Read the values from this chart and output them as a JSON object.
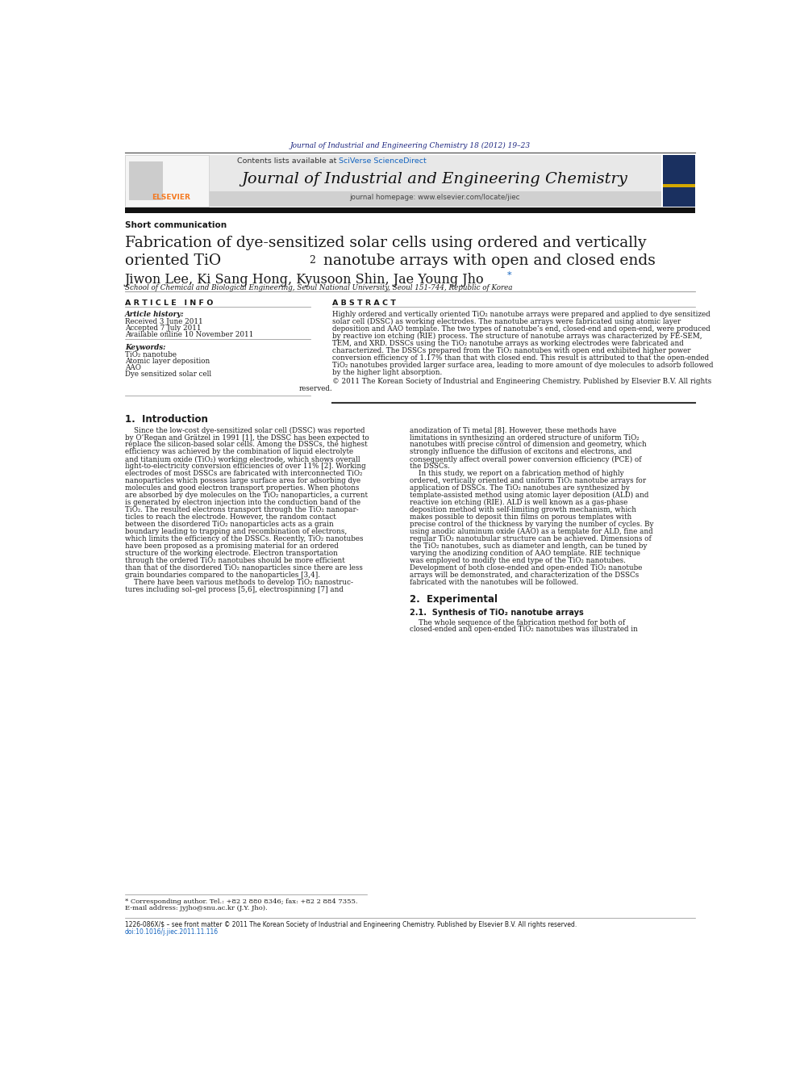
{
  "page_width": 9.92,
  "page_height": 13.23,
  "bg_color": "#ffffff",
  "header_journal_text": "Journal of Industrial and Engineering Chemistry 18 (2012) 19–23",
  "header_journal_color": "#1a237e",
  "sciverse_color": "#1565c0",
  "journal_title": "Journal of Industrial and Engineering Chemistry",
  "journal_homepage_text": "journal homepage: www.elsevier.com/locate/jiec",
  "header_bg_color": "#e8e8e8",
  "elsevier_orange": "#f47920",
  "section_label": "Short communication",
  "article_title_line1": "Fabrication of dye-sensitized solar cells using ordered and vertically",
  "article_title_line2a": "oriented TiO",
  "article_title_line2b": "2",
  "article_title_line2c": " nanotube arrays with open and closed ends",
  "authors": "Jiwon Lee, Ki Sang Hong, Kyusoon Shin, Jae Young Jho",
  "affiliation": "School of Chemical and Biological Engineering, Seoul National University, Seoul 151-744, Republic of Korea",
  "article_info_header": "A R T I C L E   I N F O",
  "abstract_header": "A B S T R A C T",
  "article_history_label": "Article history:",
  "received": "Received 3 June 2011",
  "accepted": "Accepted 7 July 2011",
  "available": "Available online 10 November 2011",
  "keywords_label": "Keywords:",
  "keyword1": "TiO₂ nanotube",
  "keyword2": "Atomic layer deposition",
  "keyword3": "AAO",
  "keyword4": "Dye sensitized solar cell",
  "abstract_lines": [
    "Highly ordered and vertically oriented TiO₂ nanotube arrays were prepared and applied to dye sensitized",
    "solar cell (DSSC) as working electrodes. The nanotube arrays were fabricated using atomic layer",
    "deposition and AAO template. The two types of nanotube’s end, closed-end and open-end, were produced",
    "by reactive ion etching (RIE) process. The structure of nanotube arrays was characterized by FE-SEM,",
    "TEM, and XRD. DSSCs using the TiO₂ nanotube arrays as working electrodes were fabricated and",
    "characterized. The DSSCs prepared from the TiO₂ nanotubes with open end exhibited higher power",
    "conversion efficiency of 1.17% than that with closed end. This result is attributed to that the open-ended",
    "TiO₂ nanotubes provided larger surface area, leading to more amount of dye molecules to adsorb followed",
    "by the higher light absorption."
  ],
  "copyright_line1": "© 2011 The Korean Society of Industrial and Engineering Chemistry. Published by Elsevier B.V. All rights",
  "copyright_line2": "reserved.",
  "intro_section": "1.  Introduction",
  "intro_left_lines": [
    "    Since the low-cost dye-sensitized solar cell (DSSC) was reported",
    "by O’Regan and Grätzel in 1991 [1], the DSSC has been expected to",
    "replace the silicon-based solar cells. Among the DSSCs, the highest",
    "efficiency was achieved by the combination of liquid electrolyte",
    "and titanium oxide (TiO₂) working electrode, which shows overall",
    "light-to-electricity conversion efficiencies of over 11% [2]. Working",
    "electrodes of most DSSCs are fabricated with interconnected TiO₂",
    "nanoparticles which possess large surface area for adsorbing dye",
    "molecules and good electron transport properties. When photons",
    "are absorbed by dye molecules on the TiO₂ nanoparticles, a current",
    "is generated by electron injection into the conduction band of the",
    "TiO₂. The resulted electrons transport through the TiO₂ nanopar-",
    "ticles to reach the electrode. However, the random contact",
    "between the disordered TiO₂ nanoparticles acts as a grain",
    "boundary leading to trapping and recombination of electrons,",
    "which limits the efficiency of the DSSCs. Recently, TiO₂ nanotubes",
    "have been proposed as a promising material for an ordered",
    "structure of the working electrode. Electron transportation",
    "through the ordered TiO₂ nanotubes should be more efficient",
    "than that of the disordered TiO₂ nanoparticles since there are less",
    "grain boundaries compared to the nanoparticles [3,4].",
    "    There have been various methods to develop TiO₂ nanostruc-",
    "tures including sol–gel process [5,6], electrospinning [7] and"
  ],
  "intro_right_lines": [
    "anodization of Ti metal [8]. However, these methods have",
    "limitations in synthesizing an ordered structure of uniform TiO₂",
    "nanotubes with precise control of dimension and geometry, which",
    "strongly influence the diffusion of excitons and electrons, and",
    "consequently affect overall power conversion efficiency (PCE) of",
    "the DSSCs.",
    "    In this study, we report on a fabrication method of highly",
    "ordered, vertically oriented and uniform TiO₂ nanotube arrays for",
    "application of DSSCs. The TiO₂ nanotubes are synthesized by",
    "template-assisted method using atomic layer deposition (ALD) and",
    "reactive ion etching (RIE). ALD is well known as a gas-phase",
    "deposition method with self-limiting growth mechanism, which",
    "makes possible to deposit thin films on porous templates with",
    "precise control of the thickness by varying the number of cycles. By",
    "using anodic aluminum oxide (AAO) as a template for ALD, fine and",
    "regular TiO₂ nanotubular structure can be achieved. Dimensions of",
    "the TiO₂ nanotubes, such as diameter and length, can be tuned by",
    "varying the anodizing condition of AAO template. RIE technique",
    "was employed to modify the end type of the TiO₂ nanotubes.",
    "Development of both close-ended and open-ended TiO₂ nanotube",
    "arrays will be demonstrated, and characterization of the DSSCs",
    "fabricated with the nanotubes will be followed."
  ],
  "section2_header": "2.  Experimental",
  "section21_header": "2.1.  Synthesis of TiO₂ nanotube arrays",
  "section21_text_lines": [
    "    The whole sequence of the fabrication method for both of",
    "closed-ended and open-ended TiO₂ nanotubes was illustrated in"
  ],
  "footnote_line1": "* Corresponding author. Tel.: +82 2 880 8346; fax: +82 2 884 7355.",
  "footnote_line2": "E-mail address: jyjho@snu.ac.kr (J.Y. Jho).",
  "footer_issn": "1226-086X/$ – see front matter © 2011 The Korean Society of Industrial and Engineering Chemistry. Published by Elsevier B.V. All rights reserved.",
  "footer_doi": "doi:10.1016/j.jiec.2011.11.116"
}
